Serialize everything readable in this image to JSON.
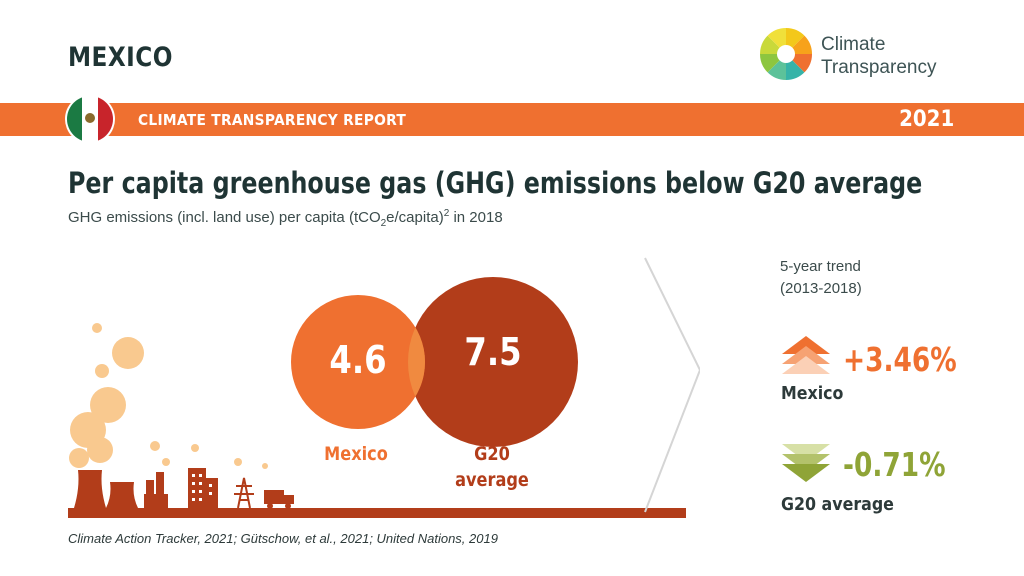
{
  "header": {
    "country": "MEXICO",
    "logo_line1": "Climate",
    "logo_line2": "Transparency",
    "band_title": "CLIMATE TRANSPARENCY REPORT",
    "year": "2021"
  },
  "headline": "Per capita greenhouse gas (GHG) emissions below G20 average",
  "subtitle": {
    "before": "GHG emissions (incl. land use) per capita (tCO",
    "sub": "2",
    "middle": "e/capita)",
    "sup": "2",
    "after": " in 2018"
  },
  "chart_data": {
    "type": "bubble",
    "categories": [
      "Mexico",
      "G20 average"
    ],
    "values": [
      4.6,
      7.5
    ],
    "value_labels": [
      "4.6",
      "7.5"
    ],
    "label_lines": [
      [
        "Mexico"
      ],
      [
        "G20",
        "average"
      ]
    ],
    "colors": {
      "mexico": "#ef7030",
      "g20": "#b23d1a",
      "overlap": "#f08a40"
    }
  },
  "trend": {
    "heading_line1": "5-year trend",
    "heading_line2": "(2013-2018)",
    "items": [
      {
        "name": "Mexico",
        "value": "+3.46%",
        "direction": "up",
        "color": "#ef7030"
      },
      {
        "name": "G20 average",
        "value": "-0.71%",
        "direction": "down",
        "color": "#8fa437"
      }
    ]
  },
  "source": "Climate Action Tracker, 2021; Gütschow, et al., 2021; United Nations, 2019"
}
